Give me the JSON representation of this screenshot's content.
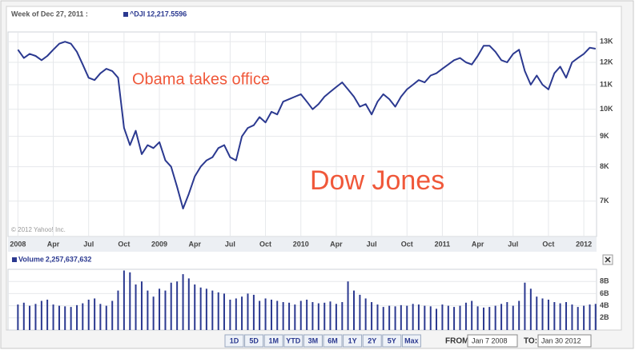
{
  "header": {
    "period": "Week of Dec 27, 2011 :"
  },
  "chart_data": [
    {
      "type": "line",
      "legend_value": "12,217.5596",
      "copyright": "© 2012 Yahoo! Inc.",
      "annotations": [
        {
          "text": "Obama takes office",
          "color": "#f0583a"
        },
        {
          "text": "Dow Jones",
          "color": "#f0583a"
        }
      ],
      "log_scale": true,
      "grid": true,
      "x": [
        2008.0,
        2008.042,
        2008.083,
        2008.125,
        2008.167,
        2008.208,
        2008.25,
        2008.292,
        2008.333,
        2008.375,
        2008.417,
        2008.458,
        2008.5,
        2008.542,
        2008.583,
        2008.625,
        2008.667,
        2008.708,
        2008.75,
        2008.792,
        2008.833,
        2008.875,
        2008.917,
        2008.958,
        2009.0,
        2009.042,
        2009.083,
        2009.125,
        2009.167,
        2009.208,
        2009.25,
        2009.292,
        2009.333,
        2009.375,
        2009.417,
        2009.458,
        2009.5,
        2009.542,
        2009.583,
        2009.625,
        2009.667,
        2009.708,
        2009.75,
        2009.792,
        2009.833,
        2009.875,
        2009.917,
        2009.958,
        2010.0,
        2010.042,
        2010.083,
        2010.125,
        2010.167,
        2010.208,
        2010.25,
        2010.292,
        2010.333,
        2010.375,
        2010.417,
        2010.458,
        2010.5,
        2010.542,
        2010.583,
        2010.625,
        2010.667,
        2010.708,
        2010.75,
        2010.792,
        2010.833,
        2010.875,
        2010.917,
        2010.958,
        2011.0,
        2011.042,
        2011.083,
        2011.125,
        2011.167,
        2011.208,
        2011.25,
        2011.292,
        2011.333,
        2011.375,
        2011.417,
        2011.458,
        2011.5,
        2011.542,
        2011.583,
        2011.625,
        2011.667,
        2011.708,
        2011.75,
        2011.792,
        2011.833,
        2011.875,
        2011.917,
        2011.958,
        2012.0,
        2012.042,
        2012.083
      ],
      "series": [
        {
          "name": "^DJI",
          "color": "#2b3990",
          "values": [
            12600,
            12200,
            12400,
            12300,
            12100,
            12300,
            12600,
            12900,
            13000,
            12900,
            12500,
            11900,
            11300,
            11200,
            11500,
            11700,
            11600,
            11300,
            9300,
            8700,
            9200,
            8400,
            8700,
            8600,
            8800,
            8200,
            8000,
            7400,
            6800,
            7200,
            7700,
            8000,
            8200,
            8300,
            8600,
            8700,
            8300,
            8200,
            9000,
            9300,
            9400,
            9700,
            9500,
            9900,
            9800,
            10300,
            10400,
            10500,
            10600,
            10300,
            10000,
            10200,
            10500,
            10700,
            10900,
            11100,
            10800,
            10500,
            10100,
            10200,
            9800,
            10300,
            10600,
            10400,
            10100,
            10500,
            10800,
            11000,
            11200,
            11100,
            11400,
            11500,
            11700,
            11900,
            12100,
            12200,
            12000,
            11900,
            12300,
            12800,
            12800,
            12500,
            12100,
            12000,
            12400,
            12600,
            11600,
            11000,
            11400,
            11000,
            10800,
            11500,
            11800,
            11300,
            12000,
            12200,
            12400,
            12700,
            12650
          ]
        }
      ],
      "xlim": [
        2007.93,
        2012.09
      ],
      "xticks": [
        2008,
        {
          "value": 2008.25,
          "label": "Apr"
        },
        {
          "value": 2008.5,
          "label": "Jul"
        },
        {
          "value": 2008.75,
          "label": "Oct"
        },
        2009,
        {
          "value": 2009.25,
          "label": "Apr"
        },
        {
          "value": 2009.5,
          "label": "Jul"
        },
        {
          "value": 2009.75,
          "label": "Oct"
        },
        2010,
        {
          "value": 2010.25,
          "label": "Apr"
        },
        {
          "value": 2010.5,
          "label": "Jul"
        },
        {
          "value": 2010.75,
          "label": "Oct"
        },
        2011,
        {
          "value": 2011.25,
          "label": "Apr"
        },
        {
          "value": 2011.5,
          "label": "Jul"
        },
        {
          "value": 2011.75,
          "label": "Oct"
        },
        2012
      ],
      "ylim": [
        6100,
        13500
      ],
      "yticks": [
        {
          "value": 7000,
          "label": "7K"
        },
        {
          "value": 8000,
          "label": "8K"
        },
        {
          "value": 9000,
          "label": "9K"
        },
        {
          "value": 10000,
          "label": "10K"
        },
        {
          "value": 11000,
          "label": "11K"
        },
        {
          "value": 12000,
          "label": "12K"
        },
        {
          "value": 13000,
          "label": "13K"
        }
      ]
    },
    {
      "type": "bar",
      "legend_value": "2,257,637,632",
      "grid": true,
      "x": [
        2008.0,
        2008.042,
        2008.083,
        2008.125,
        2008.167,
        2008.208,
        2008.25,
        2008.292,
        2008.333,
        2008.375,
        2008.417,
        2008.458,
        2008.5,
        2008.542,
        2008.583,
        2008.625,
        2008.667,
        2008.708,
        2008.75,
        2008.792,
        2008.833,
        2008.875,
        2008.917,
        2008.958,
        2009.0,
        2009.042,
        2009.083,
        2009.125,
        2009.167,
        2009.208,
        2009.25,
        2009.292,
        2009.333,
        2009.375,
        2009.417,
        2009.458,
        2009.5,
        2009.542,
        2009.583,
        2009.625,
        2009.667,
        2009.708,
        2009.75,
        2009.792,
        2009.833,
        2009.875,
        2009.917,
        2009.958,
        2010.0,
        2010.042,
        2010.083,
        2010.125,
        2010.167,
        2010.208,
        2010.25,
        2010.292,
        2010.333,
        2010.375,
        2010.417,
        2010.458,
        2010.5,
        2010.542,
        2010.583,
        2010.625,
        2010.667,
        2010.708,
        2010.75,
        2010.792,
        2010.833,
        2010.875,
        2010.917,
        2010.958,
        2011.0,
        2011.042,
        2011.083,
        2011.125,
        2011.167,
        2011.208,
        2011.25,
        2011.292,
        2011.333,
        2011.375,
        2011.417,
        2011.458,
        2011.5,
        2011.542,
        2011.583,
        2011.625,
        2011.667,
        2011.708,
        2011.75,
        2011.792,
        2011.833,
        2011.875,
        2011.917,
        2011.958,
        2012.0,
        2012.042,
        2012.083
      ],
      "series": [
        {
          "name": "Volume",
          "color": "#2b3990",
          "values": [
            4.2,
            4.5,
            4.0,
            4.3,
            4.8,
            5.0,
            4.2,
            4.0,
            3.9,
            3.8,
            4.1,
            4.4,
            5.0,
            5.2,
            4.3,
            4.0,
            4.8,
            6.5,
            9.8,
            9.5,
            7.5,
            8.0,
            6.5,
            5.5,
            6.8,
            6.5,
            7.8,
            8.0,
            9.2,
            8.5,
            7.5,
            7.0,
            6.8,
            6.5,
            6.2,
            6.0,
            5.0,
            5.2,
            5.5,
            6.0,
            5.8,
            4.8,
            5.2,
            5.0,
            4.8,
            4.6,
            4.5,
            4.2,
            4.8,
            5.0,
            4.6,
            4.4,
            4.5,
            4.7,
            4.3,
            4.6,
            8.0,
            6.5,
            5.8,
            5.2,
            4.6,
            4.2,
            3.8,
            4.0,
            3.9,
            4.1,
            4.0,
            4.3,
            4.2,
            4.0,
            3.9,
            3.5,
            4.2,
            4.0,
            3.8,
            4.0,
            4.5,
            4.8,
            3.9,
            3.7,
            3.8,
            4.0,
            4.3,
            4.6,
            4.0,
            4.8,
            7.8,
            6.8,
            5.5,
            5.2,
            5.0,
            4.6,
            4.4,
            4.6,
            4.2,
            3.8,
            4.0,
            4.2,
            4.3
          ]
        }
      ],
      "xlim": [
        2007.93,
        2012.09
      ],
      "ylim": [
        0,
        10
      ],
      "yticks": [
        {
          "value": 2,
          "label": "2B"
        },
        {
          "value": 4,
          "label": "4B"
        },
        {
          "value": 6,
          "label": "6B"
        },
        {
          "value": 8,
          "label": "8B"
        }
      ]
    }
  ],
  "controls": {
    "ranges": [
      "1D",
      "5D",
      "1M",
      "YTD",
      "3M",
      "6M",
      "1Y",
      "2Y",
      "5Y",
      "Max"
    ],
    "from_label": "FROM:",
    "from": "Jan 7 2008",
    "to_label": "TO:",
    "to": "Jan 30 2012"
  }
}
